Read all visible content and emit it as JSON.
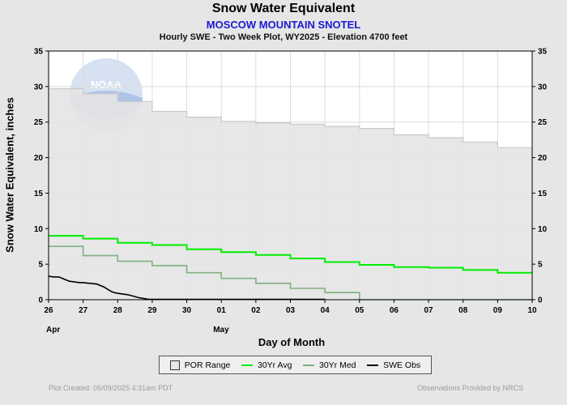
{
  "header": {
    "title": "Snow Water Equivalent",
    "station": "MOSCOW MOUNTAIN SNOTEL",
    "subtitle": "Hourly SWE - Two Week Plot, WY2025 -  Elevation 4700 feet"
  },
  "footer": {
    "created": "Plot Created: 05/09/2025 4:31am PDT",
    "credit": "Observations Provided by NRCS"
  },
  "logo_text": "NOAA",
  "legend": {
    "items": [
      "POR Range",
      "30Yr Avg",
      "30Yr Med",
      "SWE Obs"
    ],
    "placement": "bottom-center"
  },
  "colors": {
    "background": "#e6e6e6",
    "plot_bg": "#ffffff",
    "por_range": "#e4e4e4",
    "por_edge": "#c8c8c8",
    "avg": "#00ee00",
    "median": "#80b080",
    "obs": "#000000",
    "grid": "#dcdcdc"
  },
  "chart_data": {
    "type": "line",
    "title": "Snow Water Equivalent",
    "subtitle": "MOSCOW MOUNTAIN SNOTEL",
    "xlabel": "Day of Month",
    "ylabel": "Snow Water Equivalent, inches",
    "xlim": [
      0,
      14
    ],
    "ylim": [
      0,
      35
    ],
    "yticks": [
      0,
      5,
      10,
      15,
      20,
      25,
      30,
      35
    ],
    "xtick_labels": [
      "26",
      "27",
      "28",
      "29",
      "30",
      "01",
      "02",
      "03",
      "04",
      "05",
      "06",
      "07",
      "08",
      "09",
      "10"
    ],
    "month_labels": [
      {
        "x": 0,
        "label": "Apr"
      },
      {
        "x": 5,
        "label": "May"
      }
    ],
    "grid": true,
    "series": [
      {
        "name": "POR Range",
        "kind": "band-step",
        "upper": [
          29.7,
          29.0,
          27.9,
          26.5,
          25.7,
          25.1,
          24.9,
          24.7,
          24.4,
          24.1,
          23.2,
          22.8,
          22.2,
          21.4
        ],
        "lower": [
          0,
          0,
          0,
          0,
          0,
          0,
          0,
          0,
          0,
          0,
          0,
          0,
          0,
          0
        ]
      },
      {
        "name": "30Yr Avg",
        "kind": "step",
        "values": [
          9.0,
          8.6,
          8.0,
          7.7,
          7.1,
          6.7,
          6.3,
          5.8,
          5.3,
          4.9,
          4.6,
          4.5,
          4.2,
          3.8
        ]
      },
      {
        "name": "30Yr Med",
        "kind": "step",
        "values": [
          7.5,
          6.2,
          5.4,
          4.8,
          3.8,
          3.0,
          2.3,
          1.6,
          1.0,
          0,
          0,
          0,
          0,
          0
        ]
      },
      {
        "name": "SWE Obs",
        "kind": "line",
        "x": [
          0,
          0.15,
          0.3,
          0.45,
          0.6,
          0.75,
          0.9,
          1.0,
          1.2,
          1.4,
          1.6,
          1.8,
          1.9,
          2.0,
          2.3,
          2.6,
          2.9,
          3.0,
          3.5,
          4,
          5,
          6,
          7,
          8
        ],
        "y": [
          3.3,
          3.2,
          3.2,
          2.9,
          2.6,
          2.5,
          2.4,
          2.4,
          2.3,
          2.2,
          1.8,
          1.2,
          1.0,
          0.9,
          0.7,
          0.3,
          0.05,
          0.05,
          0.05,
          0.05,
          0.05,
          0.05,
          0.05,
          0.05
        ]
      }
    ]
  }
}
